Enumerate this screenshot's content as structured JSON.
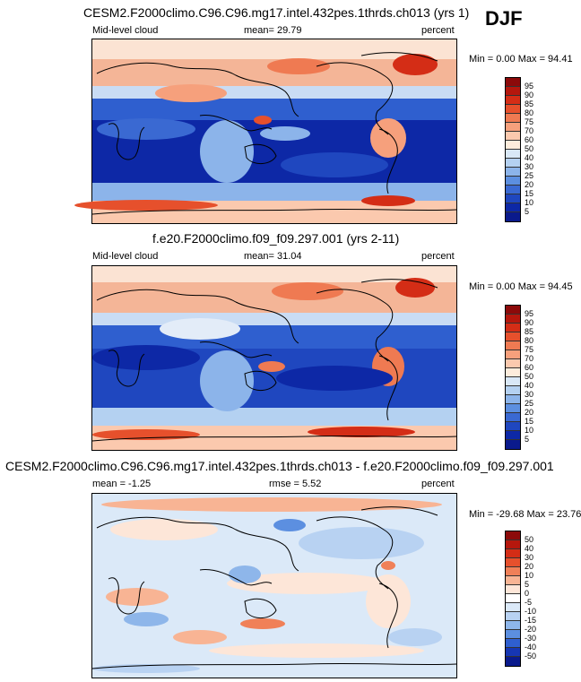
{
  "season": "DJF",
  "panels": [
    {
      "title": "CESM2.F2000climo.C96.C96.mg17.intel.432pes.1thrds.ch013 (yrs 1)",
      "left_label": "Mid-level cloud",
      "center_label": "mean=  29.79",
      "right_label": "percent",
      "minmax": "Min =   0.00 Max =  94.41",
      "colorbar": {
        "levels": [
          "95",
          "90",
          "85",
          "80",
          "75",
          "70",
          "60",
          "50",
          "40",
          "30",
          "25",
          "20",
          "15",
          "10",
          "5"
        ],
        "colors": [
          "#8c0a0a",
          "#b5170d",
          "#d42d16",
          "#e6502c",
          "#ef7a52",
          "#f6a07c",
          "#fbc9ae",
          "#fdecdc",
          "#d9e8f7",
          "#b4d1f1",
          "#8cb4ea",
          "#5c8fe0",
          "#3a69d2",
          "#1f47bf",
          "#0d28a6",
          "#0a1a8c"
        ]
      }
    },
    {
      "title": "f.e20.F2000climo.f09_f09.297.001 (yrs 2-11)",
      "left_label": "Mid-level cloud",
      "center_label": "mean=  31.04",
      "right_label": "percent",
      "minmax": "Min =   0.00 Max =  94.45",
      "colorbar": {
        "levels": [
          "95",
          "90",
          "85",
          "80",
          "75",
          "70",
          "60",
          "50",
          "40",
          "30",
          "25",
          "20",
          "15",
          "10",
          "5"
        ],
        "colors": [
          "#8c0a0a",
          "#b5170d",
          "#d42d16",
          "#e6502c",
          "#ef7a52",
          "#f6a07c",
          "#fbc9ae",
          "#fdecdc",
          "#d9e8f7",
          "#b4d1f1",
          "#8cb4ea",
          "#5c8fe0",
          "#3a69d2",
          "#1f47bf",
          "#0d28a6",
          "#0a1a8c"
        ]
      }
    },
    {
      "title": "CESM2.F2000climo.C96.C96.mg17.intel.432pes.1thrds.ch013 - f.e20.F2000climo.f09_f09.297.001",
      "left_label": "mean =  -1.25",
      "center_label": "rmse =   5.52",
      "right_label": "percent",
      "minmax": "Min = -29.68 Max =  23.76",
      "colorbar": {
        "levels": [
          "50",
          "40",
          "30",
          "20",
          "10",
          "5",
          "0",
          "-5",
          "-10",
          "-15",
          "-20",
          "-30",
          "-40",
          "-50"
        ],
        "colors": [
          "#8c0a0a",
          "#b5170d",
          "#d42d16",
          "#e6502c",
          "#f08058",
          "#f8b494",
          "#fde6d8",
          "#ffffff",
          "#dbe9f8",
          "#b8d2f2",
          "#8eb6ea",
          "#5c8fe0",
          "#2f5fcf",
          "#1636b3",
          "#0a1a8c"
        ]
      }
    }
  ]
}
